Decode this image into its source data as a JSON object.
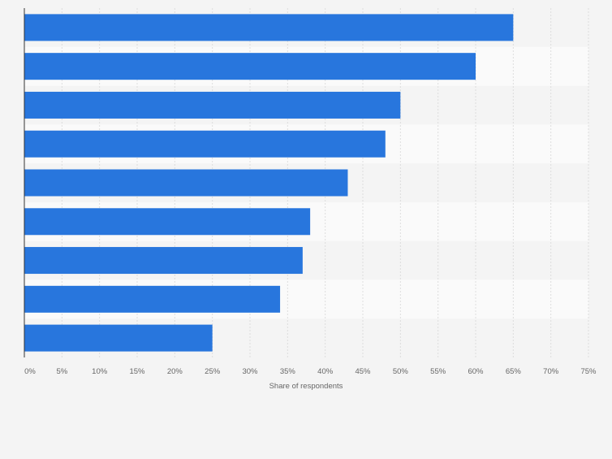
{
  "chart_data": {
    "type": "bar",
    "orientation": "horizontal",
    "categories": [
      "",
      "",
      "",
      "",
      "",
      "",
      "",
      "",
      ""
    ],
    "values": [
      65,
      60,
      50,
      48,
      43,
      38,
      37,
      34,
      25
    ],
    "xlabel": "Share of respondents",
    "ylabel": "",
    "xlim": [
      0,
      75
    ],
    "xticks": [
      0,
      5,
      10,
      15,
      20,
      25,
      30,
      35,
      40,
      45,
      50,
      55,
      60,
      65,
      70,
      75
    ],
    "xtick_labels": [
      "0%",
      "5%",
      "10%",
      "15%",
      "20%",
      "25%",
      "30%",
      "35%",
      "40%",
      "45%",
      "50%",
      "55%",
      "60%",
      "65%",
      "70%",
      "75%"
    ],
    "grid": true,
    "legend": "none",
    "colors": {
      "bar": "#2876dd",
      "background": "#f4f4f4",
      "band_light": "#fafafa",
      "grid": "#dddddd",
      "axis": "#333333",
      "tick_text": "#666666"
    }
  }
}
